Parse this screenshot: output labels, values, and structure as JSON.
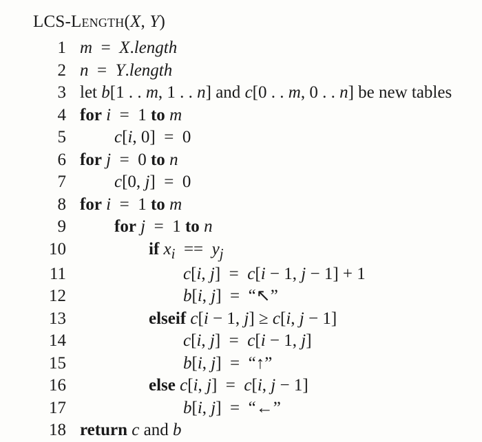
{
  "title": {
    "name_sc": "LCS-Length",
    "args_open": "(",
    "arg1": "X",
    "sep": ", ",
    "arg2": "Y",
    "args_close": ")"
  },
  "colors": {
    "background": "#fdfdfb",
    "text": "#1a1a1a"
  },
  "typography": {
    "font_family": "Times New Roman",
    "font_size_pt": 19,
    "line_height": 1.3
  },
  "indent_unit_spaces": 4,
  "lines": [
    {
      "n": 1,
      "indent": 0,
      "html": "<span class='it'>m</span>  =  <span class='it'>X</span>.<span class='it'>length</span>"
    },
    {
      "n": 2,
      "indent": 0,
      "html": "<span class='it'>n</span>  =  <span class='it'>Y</span>.<span class='it'>length</span>"
    },
    {
      "n": 3,
      "indent": 0,
      "html": "let <span class='it'>b</span>[1 . . <span class='it'>m</span>, 1 . . <span class='it'>n</span>] and <span class='it'>c</span>[0 . . <span class='it'>m</span>, 0 . . <span class='it'>n</span>] be new tables"
    },
    {
      "n": 4,
      "indent": 0,
      "html": "<span class='kw'>for</span> <span class='it'>i</span>  =  1 <span class='kw'>to</span> <span class='it'>m</span>"
    },
    {
      "n": 5,
      "indent": 2,
      "html": "<span class='it'>c</span>[<span class='it'>i</span>, 0]  =  0"
    },
    {
      "n": 6,
      "indent": 0,
      "html": "<span class='kw'>for</span> <span class='it'>j</span>  =  0 <span class='kw'>to</span> <span class='it'>n</span>"
    },
    {
      "n": 7,
      "indent": 2,
      "html": "<span class='it'>c</span>[0, <span class='it'>j</span>]  =  0"
    },
    {
      "n": 8,
      "indent": 0,
      "html": "<span class='kw'>for</span> <span class='it'>i</span>  =  1 <span class='kw'>to</span> <span class='it'>m</span>"
    },
    {
      "n": 9,
      "indent": 2,
      "html": "<span class='kw'>for</span> <span class='it'>j</span>  =  1 <span class='kw'>to</span> <span class='it'>n</span>"
    },
    {
      "n": 10,
      "indent": 4,
      "html": "<span class='kw'>if</span> <span class='it'>x<sub>i</sub></span>  ==  <span class='it'>y<sub>j</sub></span>"
    },
    {
      "n": 11,
      "indent": 6,
      "html": "<span class='it'>c</span>[<span class='it'>i</span>, <span class='it'>j</span>]  =  <span class='it'>c</span>[<span class='it'>i</span> − 1, <span class='it'>j</span> − 1] + 1"
    },
    {
      "n": 12,
      "indent": 6,
      "html": "<span class='it'>b</span>[<span class='it'>i</span>, <span class='it'>j</span>]  =  “↖”"
    },
    {
      "n": 13,
      "indent": 4,
      "html": "<span class='kw'>elseif</span> <span class='it'>c</span>[<span class='it'>i</span> − 1, <span class='it'>j</span>] ≥ <span class='it'>c</span>[<span class='it'>i</span>, <span class='it'>j</span> − 1]"
    },
    {
      "n": 14,
      "indent": 6,
      "html": "<span class='it'>c</span>[<span class='it'>i</span>, <span class='it'>j</span>]  =  <span class='it'>c</span>[<span class='it'>i</span> − 1, <span class='it'>j</span>]"
    },
    {
      "n": 15,
      "indent": 6,
      "html": "<span class='it'>b</span>[<span class='it'>i</span>, <span class='it'>j</span>]  =  “↑”"
    },
    {
      "n": 16,
      "indent": 4,
      "html": "<span class='kw'>else</span> <span class='it'>c</span>[<span class='it'>i</span>, <span class='it'>j</span>]  =  <span class='it'>c</span>[<span class='it'>i</span>, <span class='it'>j</span> − 1]"
    },
    {
      "n": 17,
      "indent": 6,
      "html": "<span class='it'>b</span>[<span class='it'>i</span>, <span class='it'>j</span>]  =  “←”"
    },
    {
      "n": 18,
      "indent": 0,
      "html": "<span class='kw'>return</span> <span class='it'>c</span> and <span class='it'>b</span>"
    }
  ]
}
